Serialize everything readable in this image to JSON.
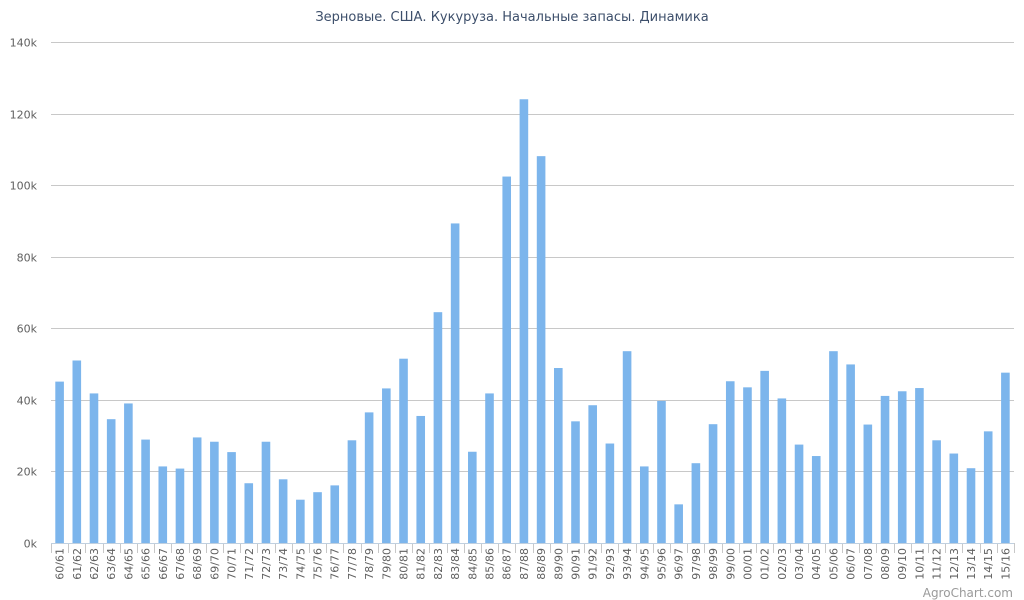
{
  "chart_data": {
    "type": "bar",
    "title": "Зерновые. США. Кукуруза. Начальные запасы. Динамика",
    "xlabel": "",
    "ylabel": "",
    "ylim": [
      0,
      140000
    ],
    "yticks": [
      0,
      20000,
      40000,
      60000,
      80000,
      100000,
      120000,
      140000
    ],
    "ytick_labels": [
      "0k",
      "20k",
      "40k",
      "60k",
      "80k",
      "100k",
      "120k",
      "140k"
    ],
    "grid": true,
    "legend": "none",
    "bar_color": "#7cb5ec",
    "categories": [
      "60/61",
      "61/62",
      "62/63",
      "63/64",
      "64/65",
      "65/66",
      "66/67",
      "67/68",
      "68/69",
      "69/70",
      "70/71",
      "71/72",
      "72/73",
      "73/74",
      "74/75",
      "75/76",
      "76/77",
      "77/78",
      "78/79",
      "79/80",
      "80/81",
      "81/82",
      "82/83",
      "83/84",
      "84/85",
      "85/86",
      "86/87",
      "87/88",
      "88/89",
      "89/90",
      "90/91",
      "91/92",
      "92/93",
      "93/94",
      "94/95",
      "95/96",
      "96/97",
      "97/98",
      "98/99",
      "99/00",
      "00/01",
      "01/02",
      "02/03",
      "03/04",
      "04/05",
      "05/06",
      "06/07",
      "07/08",
      "08/09",
      "09/10",
      "10/11",
      "11/12",
      "12/13",
      "13/14",
      "14/15",
      "15/16"
    ],
    "values": [
      45100,
      51000,
      41800,
      34600,
      39000,
      28900,
      21400,
      20800,
      29500,
      28300,
      25400,
      16700,
      28300,
      17800,
      12100,
      14200,
      16100,
      28700,
      36500,
      43200,
      51500,
      35500,
      64500,
      89300,
      25500,
      41800,
      102400,
      124000,
      108100,
      48900,
      34000,
      38500,
      27800,
      53600,
      21400,
      39700,
      10800,
      22300,
      33200,
      45200,
      43500,
      48100,
      40400,
      27500,
      24300,
      53600,
      49900,
      33100,
      41100,
      42400,
      43300,
      28700,
      25000,
      20900,
      31200,
      47600
    ]
  },
  "credit": "AgroChart.com"
}
